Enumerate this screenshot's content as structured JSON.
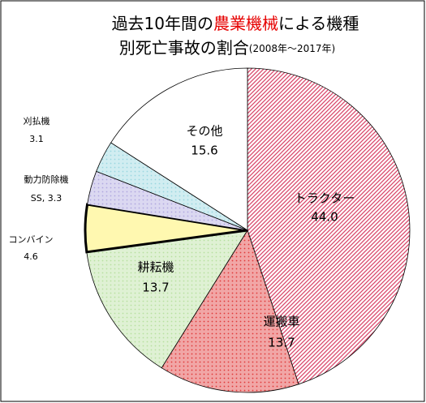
{
  "chart_data": {
    "type": "pie",
    "title": [
      "過去10年間の",
      "農業機械",
      "による機種",
      "別死亡事故の割合"
    ],
    "subtitle": "(2008年～2017年)",
    "categories": [
      "トラクター",
      "運搬車",
      "耕耘機",
      "コンバイン",
      "動力防除機",
      "刈払機",
      "その他"
    ],
    "values": [
      44.0,
      13.7,
      13.7,
      4.6,
      3.3,
      3.1,
      15.6
    ],
    "value_labels": [
      "44.0",
      "13.7",
      "13.7",
      "4.6",
      "SS, 3.3",
      "3.1",
      "15.6"
    ],
    "colors": [
      "#d9476a",
      "#e03a3a",
      "#b8e0a0",
      "#fff8b0",
      "#b0a8e0",
      "#9ad8e0",
      "#ffffff"
    ]
  }
}
